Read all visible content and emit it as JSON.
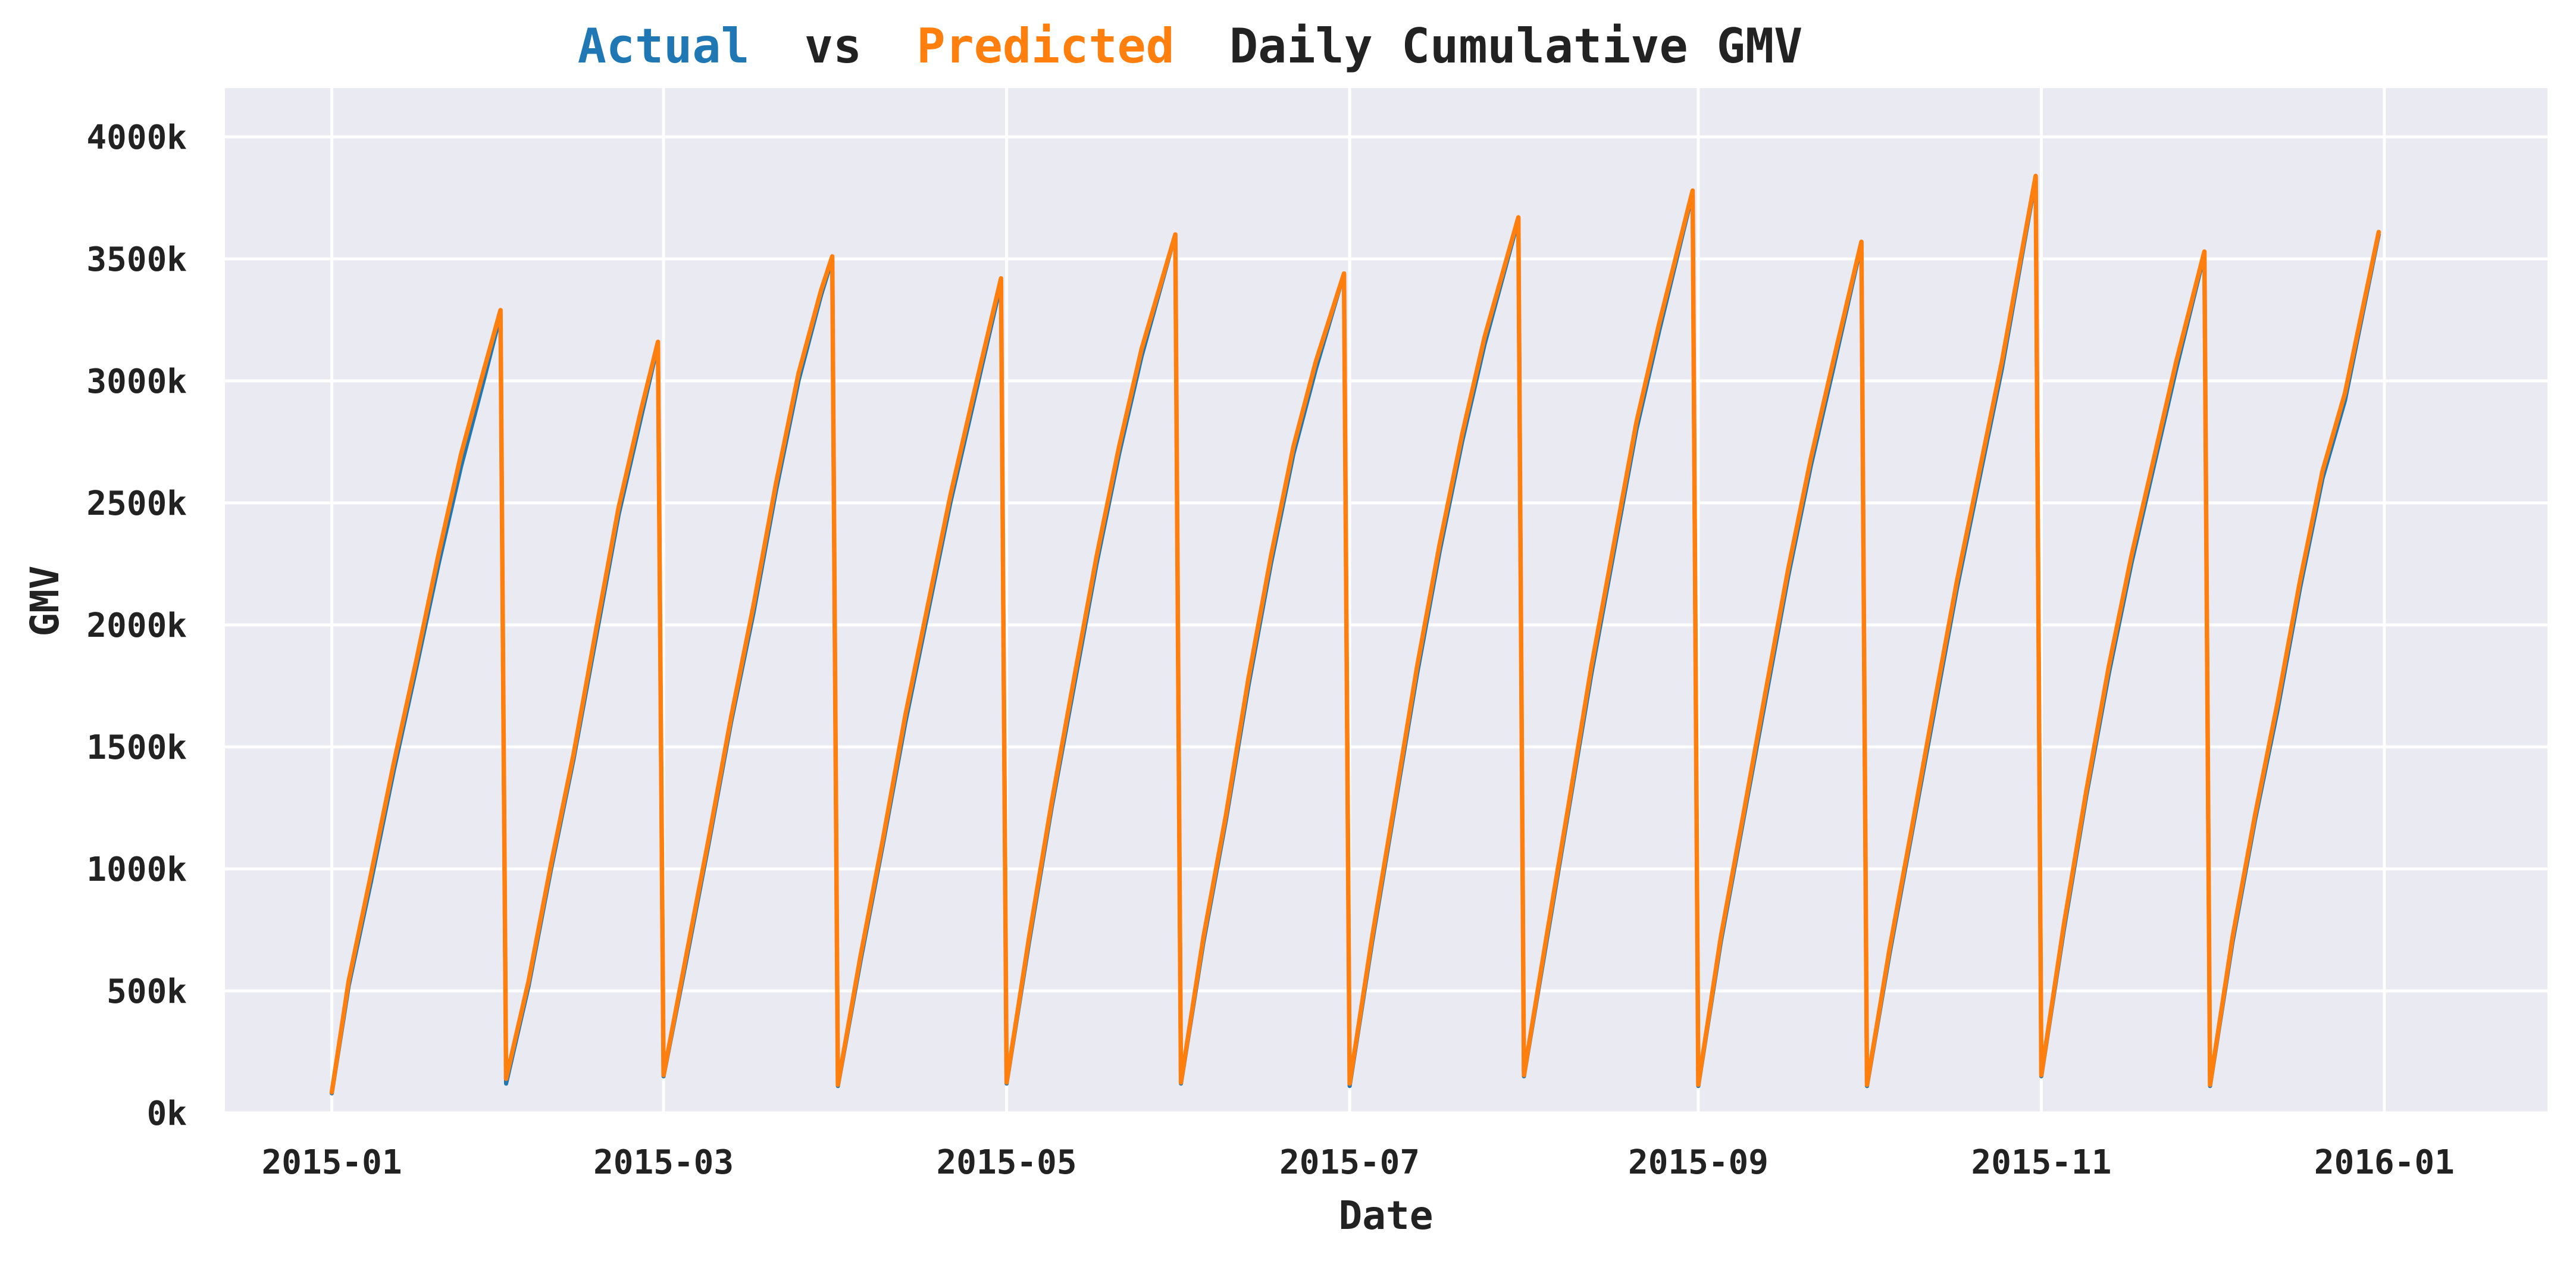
{
  "title": {
    "word_actual": "Actual",
    "word_vs": "vs",
    "word_predicted": "Predicted",
    "rest": "Daily Cumulative GMV"
  },
  "colors": {
    "actual": "#1f77b4",
    "predicted": "#ff7f0e",
    "plot_background": "#eaeaf2",
    "grid": "#ffffff",
    "text": "#222222"
  },
  "chart_data": {
    "type": "line",
    "title": "Actual vs Predicted Daily Cumulative GMV",
    "xlabel": "Date",
    "ylabel": "GMV",
    "xlim": [
      "2014-12-13",
      "2016-01-30"
    ],
    "ylim": [
      0,
      4200000
    ],
    "x_ticks": [
      "2015-01-01",
      "2015-03-01",
      "2015-05-01",
      "2015-07-01",
      "2015-09-01",
      "2015-11-01",
      "2016-01-01"
    ],
    "x_tick_labels": [
      "2015-01",
      "2015-03",
      "2015-05",
      "2015-07",
      "2015-09",
      "2015-11",
      "2016-01"
    ],
    "y_ticks": [
      0,
      500000,
      1000000,
      1500000,
      2000000,
      2500000,
      3000000,
      3500000,
      4000000
    ],
    "y_tick_labels": [
      "0k",
      "500k",
      "1000k",
      "1500k",
      "2000k",
      "2500k",
      "3000k",
      "3500k",
      "4000k"
    ],
    "grid": true,
    "series_color_keys": [
      "actual",
      "predicted"
    ],
    "monthly_start_values": [
      80000,
      120000,
      150000,
      110000,
      120000,
      120000,
      110000,
      150000,
      110000,
      110000,
      150000,
      110000
    ],
    "monthly_end_values": [
      3290000,
      3160000,
      3510000,
      3420000,
      3600000,
      3440000,
      3670000,
      3780000,
      3570000,
      3840000,
      3530000,
      3610000
    ],
    "series": [
      {
        "x": [
          "2015-01-01",
          "2015-01-04",
          "2015-01-08",
          "2015-01-12",
          "2015-01-16",
          "2015-01-20",
          "2015-01-24",
          "2015-01-28",
          "2015-01-31",
          "2015-02-01",
          "2015-02-05",
          "2015-02-09",
          "2015-02-13",
          "2015-02-17",
          "2015-02-21",
          "2015-02-25",
          "2015-02-28",
          "2015-03-01",
          "2015-03-05",
          "2015-03-09",
          "2015-03-13",
          "2015-03-17",
          "2015-03-21",
          "2015-03-25",
          "2015-03-29",
          "2015-03-31",
          "2015-04-01",
          "2015-04-05",
          "2015-04-09",
          "2015-04-13",
          "2015-04-17",
          "2015-04-21",
          "2015-04-25",
          "2015-04-30",
          "2015-05-01",
          "2015-05-05",
          "2015-05-09",
          "2015-05-13",
          "2015-05-17",
          "2015-05-21",
          "2015-05-25",
          "2015-05-31",
          "2015-06-01",
          "2015-06-05",
          "2015-06-09",
          "2015-06-13",
          "2015-06-17",
          "2015-06-21",
          "2015-06-25",
          "2015-06-30",
          "2015-07-01",
          "2015-07-05",
          "2015-07-09",
          "2015-07-13",
          "2015-07-17",
          "2015-07-21",
          "2015-07-25",
          "2015-07-31",
          "2015-08-01",
          "2015-08-05",
          "2015-08-09",
          "2015-08-13",
          "2015-08-17",
          "2015-08-21",
          "2015-08-25",
          "2015-08-31",
          "2015-09-01",
          "2015-09-05",
          "2015-09-09",
          "2015-09-13",
          "2015-09-17",
          "2015-09-21",
          "2015-09-25",
          "2015-09-30",
          "2015-10-01",
          "2015-10-05",
          "2015-10-09",
          "2015-10-13",
          "2015-10-17",
          "2015-10-21",
          "2015-10-25",
          "2015-10-31",
          "2015-11-01",
          "2015-11-05",
          "2015-11-09",
          "2015-11-13",
          "2015-11-17",
          "2015-11-21",
          "2015-11-25",
          "2015-11-30",
          "2015-12-01",
          "2015-12-05",
          "2015-12-09",
          "2015-12-13",
          "2015-12-17",
          "2015-12-21",
          "2015-12-25",
          "2015-12-31"
        ],
        "y": [
          80000,
          520000,
          950000,
          1400000,
          1820000,
          2250000,
          2650000,
          3000000,
          3270000,
          120000,
          520000,
          1000000,
          1450000,
          1950000,
          2450000,
          2850000,
          3150000,
          150000,
          620000,
          1100000,
          1600000,
          2050000,
          2550000,
          3000000,
          3350000,
          3500000,
          110000,
          620000,
          1100000,
          1600000,
          2050000,
          2500000,
          2900000,
          3400000,
          120000,
          700000,
          1250000,
          1750000,
          2250000,
          2700000,
          3100000,
          3600000,
          120000,
          700000,
          1200000,
          1750000,
          2250000,
          2700000,
          3050000,
          3440000,
          110000,
          700000,
          1250000,
          1800000,
          2300000,
          2750000,
          3150000,
          3660000,
          150000,
          700000,
          1250000,
          1800000,
          2300000,
          2800000,
          3200000,
          3770000,
          110000,
          700000,
          1200000,
          1700000,
          2200000,
          2650000,
          3050000,
          3560000,
          110000,
          650000,
          1150000,
          1650000,
          2150000,
          2600000,
          3050000,
          3830000,
          150000,
          750000,
          1300000,
          1800000,
          2250000,
          2650000,
          3050000,
          3520000,
          110000,
          700000,
          1200000,
          1650000,
          2150000,
          2600000,
          2920000,
          3600000
        ],
        "color": "#1f77b4"
      },
      {
        "x": [
          "2015-01-01",
          "2015-01-04",
          "2015-01-08",
          "2015-01-12",
          "2015-01-16",
          "2015-01-20",
          "2015-01-24",
          "2015-01-28",
          "2015-01-31",
          "2015-02-01",
          "2015-02-05",
          "2015-02-09",
          "2015-02-13",
          "2015-02-17",
          "2015-02-21",
          "2015-02-25",
          "2015-02-28",
          "2015-03-01",
          "2015-03-05",
          "2015-03-09",
          "2015-03-13",
          "2015-03-17",
          "2015-03-21",
          "2015-03-25",
          "2015-03-29",
          "2015-03-31",
          "2015-04-01",
          "2015-04-05",
          "2015-04-09",
          "2015-04-13",
          "2015-04-17",
          "2015-04-21",
          "2015-04-25",
          "2015-04-30",
          "2015-05-01",
          "2015-05-05",
          "2015-05-09",
          "2015-05-13",
          "2015-05-17",
          "2015-05-21",
          "2015-05-25",
          "2015-05-31",
          "2015-06-01",
          "2015-06-05",
          "2015-06-09",
          "2015-06-13",
          "2015-06-17",
          "2015-06-21",
          "2015-06-25",
          "2015-06-30",
          "2015-07-01",
          "2015-07-05",
          "2015-07-09",
          "2015-07-13",
          "2015-07-17",
          "2015-07-21",
          "2015-07-25",
          "2015-07-31",
          "2015-08-01",
          "2015-08-05",
          "2015-08-09",
          "2015-08-13",
          "2015-08-17",
          "2015-08-21",
          "2015-08-25",
          "2015-08-31",
          "2015-09-01",
          "2015-09-05",
          "2015-09-09",
          "2015-09-13",
          "2015-09-17",
          "2015-09-21",
          "2015-09-25",
          "2015-09-30",
          "2015-10-01",
          "2015-10-05",
          "2015-10-09",
          "2015-10-13",
          "2015-10-17",
          "2015-10-21",
          "2015-10-25",
          "2015-10-31",
          "2015-11-01",
          "2015-11-05",
          "2015-11-09",
          "2015-11-13",
          "2015-11-17",
          "2015-11-21",
          "2015-11-25",
          "2015-11-30",
          "2015-12-01",
          "2015-12-05",
          "2015-12-09",
          "2015-12-13",
          "2015-12-17",
          "2015-12-21",
          "2015-12-25",
          "2015-12-31"
        ],
        "y": [
          85000,
          540000,
          980000,
          1430000,
          1850000,
          2290000,
          2700000,
          3040000,
          3290000,
          140000,
          540000,
          1020000,
          1470000,
          1980000,
          2480000,
          2880000,
          3160000,
          155000,
          640000,
          1120000,
          1620000,
          2080000,
          2580000,
          3030000,
          3370000,
          3510000,
          115000,
          640000,
          1120000,
          1630000,
          2080000,
          2530000,
          2930000,
          3420000,
          125000,
          720000,
          1270000,
          1780000,
          2280000,
          2730000,
          3130000,
          3600000,
          125000,
          720000,
          1220000,
          1780000,
          2280000,
          2730000,
          3080000,
          3440000,
          120000,
          720000,
          1270000,
          1830000,
          2330000,
          2780000,
          3180000,
          3670000,
          155000,
          720000,
          1270000,
          1830000,
          2330000,
          2830000,
          3230000,
          3780000,
          115000,
          720000,
          1220000,
          1730000,
          2230000,
          2680000,
          3080000,
          3570000,
          115000,
          670000,
          1170000,
          1680000,
          2180000,
          2630000,
          3080000,
          3840000,
          155000,
          770000,
          1320000,
          1830000,
          2280000,
          2680000,
          3080000,
          3530000,
          115000,
          720000,
          1220000,
          1680000,
          2180000,
          2630000,
          2950000,
          3610000
        ],
        "color": "#ff7f0e"
      }
    ]
  }
}
